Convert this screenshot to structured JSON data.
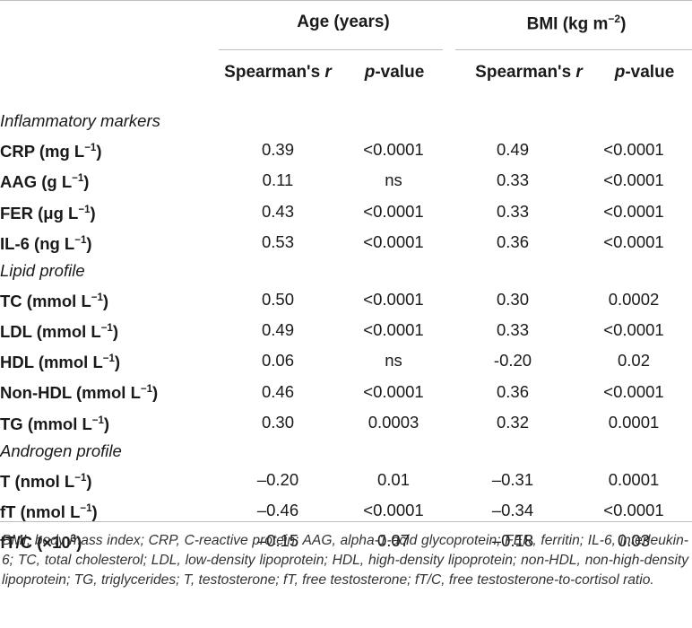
{
  "header": {
    "age_title": "Age (years)",
    "bmi_title_prefix": "BMI (kg m",
    "bmi_title_sup": "−2",
    "bmi_title_suffix": ")",
    "col_r_text": "Spearman's ",
    "col_r_italic": "r",
    "col_p_italic": "p",
    "col_p_text": "-value"
  },
  "rows": [
    {
      "type": "section",
      "label": "Inflammatory markers"
    },
    {
      "type": "data",
      "label": "CRP (mg L",
      "sup": "−1",
      "tail": ")",
      "age_r": "0.39",
      "age_p": "<0.0001",
      "bmi_r": "0.49",
      "bmi_p": "<0.0001"
    },
    {
      "type": "data",
      "label": "AAG (g L",
      "sup": "−1",
      "tail": ")",
      "age_r": "0.11",
      "age_p": "ns",
      "bmi_r": "0.33",
      "bmi_p": "<0.0001"
    },
    {
      "type": "data",
      "label": "FER (μg L",
      "sup": "−1",
      "tail": ")",
      "age_r": "0.43",
      "age_p": "<0.0001",
      "bmi_r": "0.33",
      "bmi_p": "<0.0001"
    },
    {
      "type": "data",
      "label": "IL-6 (ng L",
      "sup": "−1",
      "tail": ")",
      "age_r": "0.53",
      "age_p": "<0.0001",
      "bmi_r": "0.36",
      "bmi_p": "<0.0001"
    },
    {
      "type": "section",
      "label": "Lipid profile"
    },
    {
      "type": "data",
      "label": "TC (mmol L",
      "sup": "−1",
      "tail": ")",
      "age_r": "0.50",
      "age_p": "<0.0001",
      "bmi_r": "0.30",
      "bmi_p": "0.0002"
    },
    {
      "type": "data",
      "label": "LDL (mmol L",
      "sup": "−1",
      "tail": ")",
      "age_r": "0.49",
      "age_p": "<0.0001",
      "bmi_r": "0.33",
      "bmi_p": "<0.0001"
    },
    {
      "type": "data",
      "label": "HDL (mmol L",
      "sup": "−1",
      "tail": ")",
      "age_r": "0.06",
      "age_p": "ns",
      "bmi_r": "-0.20",
      "bmi_p": "0.02"
    },
    {
      "type": "data",
      "label": "Non-HDL (mmol L",
      "sup": "−1",
      "tail": ")",
      "age_r": "0.46",
      "age_p": "<0.0001",
      "bmi_r": "0.36",
      "bmi_p": "<0.0001"
    },
    {
      "type": "data",
      "label": "TG (mmol L",
      "sup": "−1",
      "tail": ")",
      "age_r": "0.30",
      "age_p": "0.0003",
      "bmi_r": "0.32",
      "bmi_p": "0.0001"
    },
    {
      "type": "section",
      "label": "Androgen profile"
    },
    {
      "type": "data",
      "label": "T (nmol L",
      "sup": "−1",
      "tail": ")",
      "age_r": "–0.20",
      "age_p": "0.01",
      "bmi_r": "–0.31",
      "bmi_p": "0.0001"
    },
    {
      "type": "data",
      "label": "fT (nmol L",
      "sup": "−1",
      "tail": ")",
      "age_r": "–0.46",
      "age_p": "<0.0001",
      "bmi_r": "–0.34",
      "bmi_p": "<0.0001"
    },
    {
      "type": "data",
      "label": "fT/C (×10",
      "sup": "3",
      "tail": ")",
      "age_r": "–0.15",
      "age_p": "0.07",
      "bmi_r": "–0.18",
      "bmi_p": "0.03"
    }
  ],
  "footnote": "BMI, body mass index; CRP, C-reactive protein; AAG, alpha-1-acid glycoprotein; FER, ferritin; IL-6, interleukin-6; TC, total cholesterol; LDL, low-density lipoprotein; HDL, high-density lipoprotein; non-HDL, non-high-density lipoprotein; TG, triglycerides; T, testosterone; fT, free testosterone; fT/C, free testosterone-to-cortisol ratio."
}
